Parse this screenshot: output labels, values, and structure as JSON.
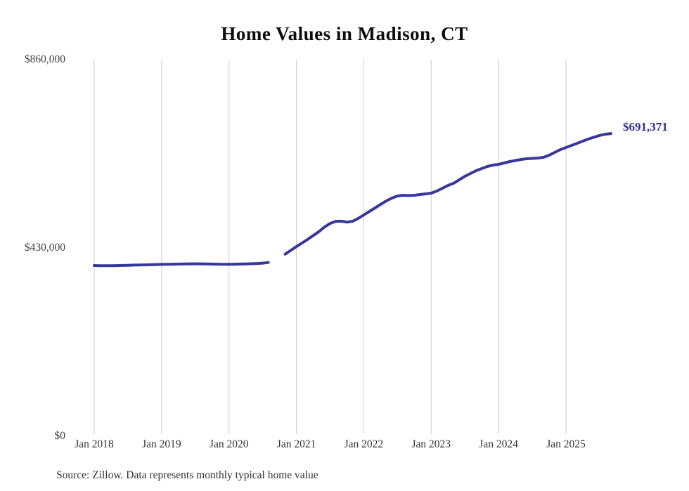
{
  "title": "Home Values in Madison, CT",
  "source_note": "Source: Zillow. Data represents monthly typical home value",
  "end_label": "$691,371",
  "colors": {
    "line": "#38379c",
    "end_label": "#2e2d8e",
    "gridline": "#cccccc",
    "title_text": "#0d0d0d",
    "axis_text": "#3f3f3f"
  },
  "y_axis": {
    "ticks": [
      "$0",
      "$430,000",
      "$860,000"
    ]
  },
  "x_axis": {
    "ticks": [
      "Jan 2018",
      "Jan 2019",
      "Jan 2020",
      "Jan 2021",
      "Jan 2022",
      "Jan 2023",
      "Jan 2024",
      "Jan 2025"
    ]
  },
  "chart_data": {
    "type": "line",
    "title": "Home Values in Madison, CT",
    "x_start": "2018-01",
    "x_interval": "month",
    "x_tick_labels": [
      "Jan 2018",
      "Jan 2019",
      "Jan 2020",
      "Jan 2021",
      "Jan 2022",
      "Jan 2023",
      "Jan 2024",
      "Jan 2025"
    ],
    "ylim": [
      0,
      860000
    ],
    "y_tick_values": [
      0,
      430000,
      860000
    ],
    "grid": "vertical-only",
    "legend": "none",
    "annotation": {
      "text": "$691,371",
      "position": "end-of-line"
    },
    "series": [
      {
        "name": "Typical home value",
        "values": [
          389900,
          389600,
          389500,
          389600,
          389800,
          390100,
          390400,
          390800,
          391100,
          391400,
          391700,
          392100,
          392400,
          392700,
          393000,
          393300,
          393600,
          393800,
          393900,
          393800,
          393500,
          393200,
          393000,
          392800,
          392700,
          392900,
          393200,
          393600,
          394000,
          394500,
          395300,
          396800,
          null,
          null,
          415900,
          424600,
          433000,
          441200,
          449500,
          458400,
          467300,
          477600,
          486000,
          490800,
          491200,
          489100,
          491000,
          497300,
          505400,
          513400,
          521500,
          529500,
          537500,
          543900,
          548800,
          550400,
          549700,
          550400,
          552000,
          553600,
          555200,
          560000,
          566400,
          572800,
          577700,
          585700,
          593700,
          600100,
          606500,
          611300,
          616100,
          619400,
          620900,
          624200,
          627400,
          629800,
          632200,
          633800,
          634600,
          635400,
          637000,
          641800,
          648200,
          654700,
          659500,
          664300,
          669100,
          674000,
          678800,
          683000,
          687000,
          689800,
          691371
        ]
      }
    ]
  }
}
